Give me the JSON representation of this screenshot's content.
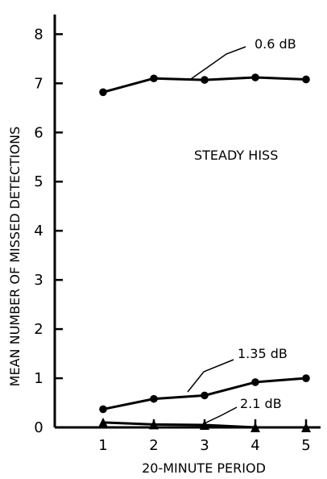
{
  "chart_data": {
    "type": "line",
    "title": "",
    "xlabel": "20-MINUTE PERIOD",
    "ylabel": "MEAN NUMBER OF MISSED DETECTIONS",
    "x": [
      "1",
      "2",
      "3",
      "4",
      "5"
    ],
    "y_ticks": [
      "0",
      "1",
      "2",
      "3",
      "4",
      "5",
      "6",
      "7",
      "8"
    ],
    "ylim": [
      0,
      8.4
    ],
    "grid": false,
    "annotation": "STEADY HISS",
    "series": [
      {
        "name": "0.6 dB",
        "values": [
          6.82,
          7.1,
          7.07,
          7.12,
          7.08
        ],
        "marker": "circle"
      },
      {
        "name": "1.35 dB",
        "values": [
          0.37,
          0.58,
          0.65,
          0.92,
          1.0
        ],
        "marker": "circle"
      },
      {
        "name": "2.1 dB",
        "values": [
          0.1,
          0.06,
          0.05,
          0.0,
          0.0
        ],
        "marker": "triangle"
      }
    ]
  }
}
